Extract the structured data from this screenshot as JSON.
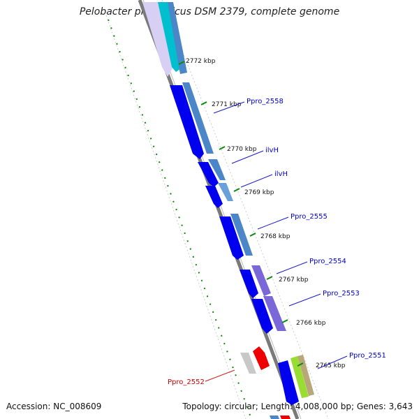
{
  "header": {
    "title": "Pelobacter propionicus DSM 2379, complete genome"
  },
  "footer": {
    "accession": "Accession: NC_008609",
    "summary": "Topology: circular; Length: 4,008,000 bp; Genes: 3,643"
  },
  "ruler": {
    "ticks": [
      "2772 kbp",
      "2771 kbp",
      "2770 kbp",
      "2769 kbp",
      "2768 kbp",
      "2767 kbp",
      "2766 kbp",
      "2765 kbp"
    ]
  },
  "genes": {
    "labels": [
      "Ppro_2558",
      "ilvH",
      "ilvH",
      "Ppro_2555",
      "Ppro_2554",
      "Ppro_2553",
      "Ppro_2551",
      "Ppro_2552"
    ]
  },
  "colors": {
    "cds_forward": "#0000ee",
    "cds_accent_1": "#4a86c8",
    "cds_accent_2": "#7b68d8",
    "cds_accent_3": "#00bfcf",
    "rna": "#ee0000",
    "pseudo": "#bbbbbb",
    "lime": "#99dd33",
    "khaki": "#b8a878",
    "backbone": "#7a7a7a",
    "tick": "#008800",
    "label_blue": "#0000cc",
    "label_red": "#cc0000"
  }
}
